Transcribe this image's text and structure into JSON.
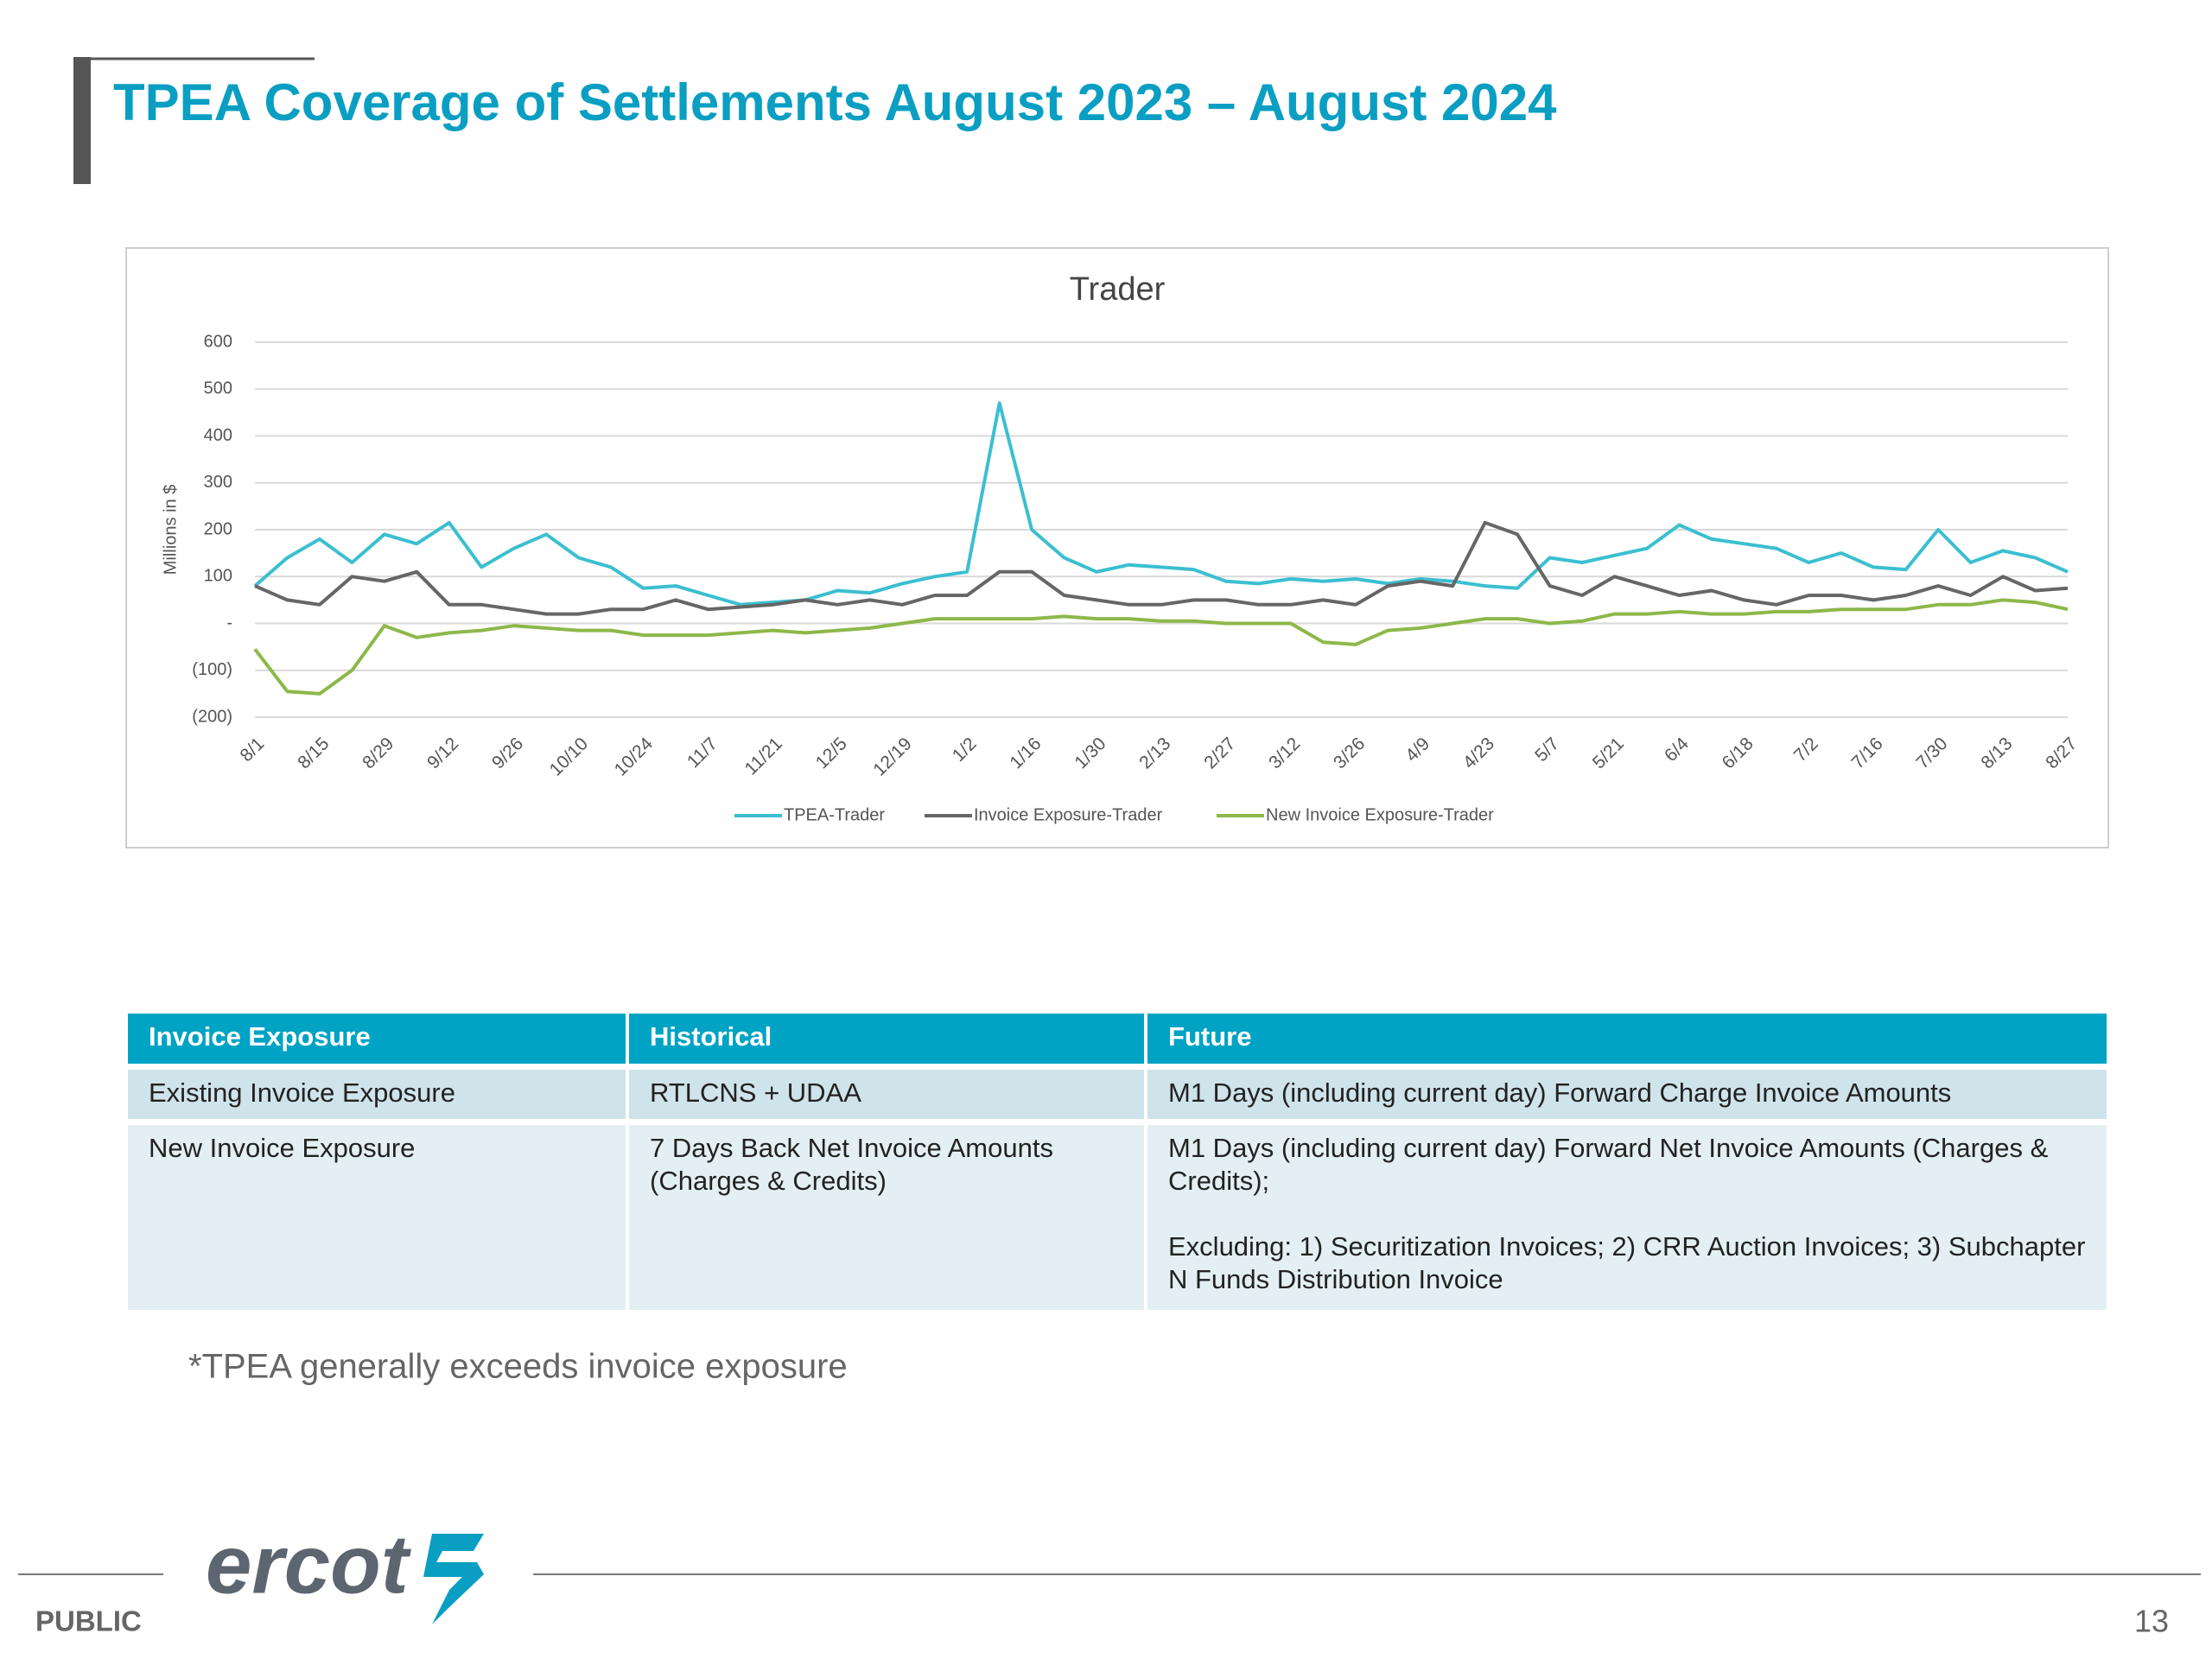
{
  "title": "TPEA Coverage of Settlements August 2023 – August 2024",
  "chart_data": {
    "type": "line",
    "title": "Trader",
    "y_label": "Millions in $",
    "categories": [
      "8/1",
      null,
      "8/15",
      null,
      "8/29",
      null,
      "9/12",
      null,
      "9/26",
      null,
      "10/10",
      null,
      "10/24",
      null,
      "11/7",
      null,
      "11/21",
      null,
      "12/5",
      null,
      "12/19",
      null,
      "1/2",
      null,
      "1/16",
      null,
      "1/30",
      null,
      "2/13",
      null,
      "2/27",
      null,
      "3/12",
      null,
      "3/26",
      null,
      "4/9",
      null,
      "4/23",
      null,
      "5/7",
      null,
      "5/21",
      null,
      "6/4",
      null,
      "6/18",
      null,
      "7/2",
      null,
      "7/16",
      null,
      "7/30",
      null,
      "8/13",
      null,
      "8/27"
    ],
    "series": [
      {
        "name": "TPEA-Trader",
        "color": "#3bbfd0",
        "values": [
          80,
          140,
          180,
          130,
          190,
          170,
          215,
          120,
          160,
          190,
          140,
          120,
          75,
          80,
          60,
          40,
          45,
          50,
          70,
          65,
          85,
          100,
          110,
          470,
          200,
          140,
          110,
          125,
          120,
          115,
          90,
          85,
          95,
          90,
          95,
          85,
          95,
          90,
          80,
          75,
          140,
          130,
          145,
          160,
          210,
          180,
          170,
          160,
          130,
          150,
          120,
          115,
          200,
          130,
          155,
          140,
          110
        ]
      },
      {
        "name": "Invoice Exposure-Trader",
        "color": "#666666",
        "values": [
          80,
          50,
          40,
          100,
          90,
          110,
          40,
          40,
          30,
          20,
          20,
          30,
          30,
          50,
          30,
          35,
          40,
          50,
          40,
          50,
          40,
          60,
          60,
          110,
          110,
          60,
          50,
          40,
          40,
          50,
          50,
          40,
          40,
          50,
          40,
          80,
          90,
          80,
          215,
          190,
          80,
          60,
          100,
          80,
          60,
          70,
          50,
          40,
          60,
          60,
          50,
          60,
          80,
          60,
          100,
          70,
          75
        ]
      },
      {
        "name": "New Invoice Exposure-Trader",
        "color": "#8db84a",
        "values": [
          -55,
          -145,
          -150,
          -100,
          -5,
          -30,
          -20,
          -15,
          -5,
          -10,
          -15,
          -15,
          -25,
          -25,
          -25,
          -20,
          -15,
          -20,
          -15,
          -10,
          0,
          10,
          10,
          10,
          10,
          15,
          10,
          10,
          5,
          5,
          0,
          0,
          0,
          -40,
          -45,
          -15,
          -10,
          0,
          10,
          10,
          0,
          5,
          20,
          20,
          25,
          20,
          20,
          25,
          25,
          30,
          30,
          30,
          40,
          40,
          50,
          45,
          30
        ]
      }
    ],
    "ylim": [
      -200,
      600
    ],
    "yticks": [
      {
        "value": -200,
        "label": "(200)"
      },
      {
        "value": -100,
        "label": "(100)"
      },
      {
        "value": 0,
        "label": "-"
      },
      100,
      200,
      300,
      400,
      500,
      600
    ],
    "grid": true,
    "legend": "bottom"
  },
  "table": {
    "header": [
      "Invoice Exposure",
      "Historical",
      "Future"
    ],
    "rows": [
      [
        "Existing Invoice Exposure",
        "RTLCNS + UDAA",
        "M1 Days (including current day) Forward Charge Invoice Amounts"
      ],
      [
        "New Invoice Exposure",
        "7 Days Back Net Invoice Amounts (Charges & Credits)",
        [
          "M1 Days (including current day)  Forward Net Invoice Amounts (Charges & Credits);",
          "Excluding: 1) Securitization Invoices; 2) CRR Auction Invoices; 3) Subchapter N Funds Distribution Invoice"
        ]
      ]
    ]
  },
  "footnote": "*TPEA generally exceeds invoice exposure",
  "footer": {
    "classification": "PUBLIC",
    "logo": "ercot",
    "page": "13"
  }
}
